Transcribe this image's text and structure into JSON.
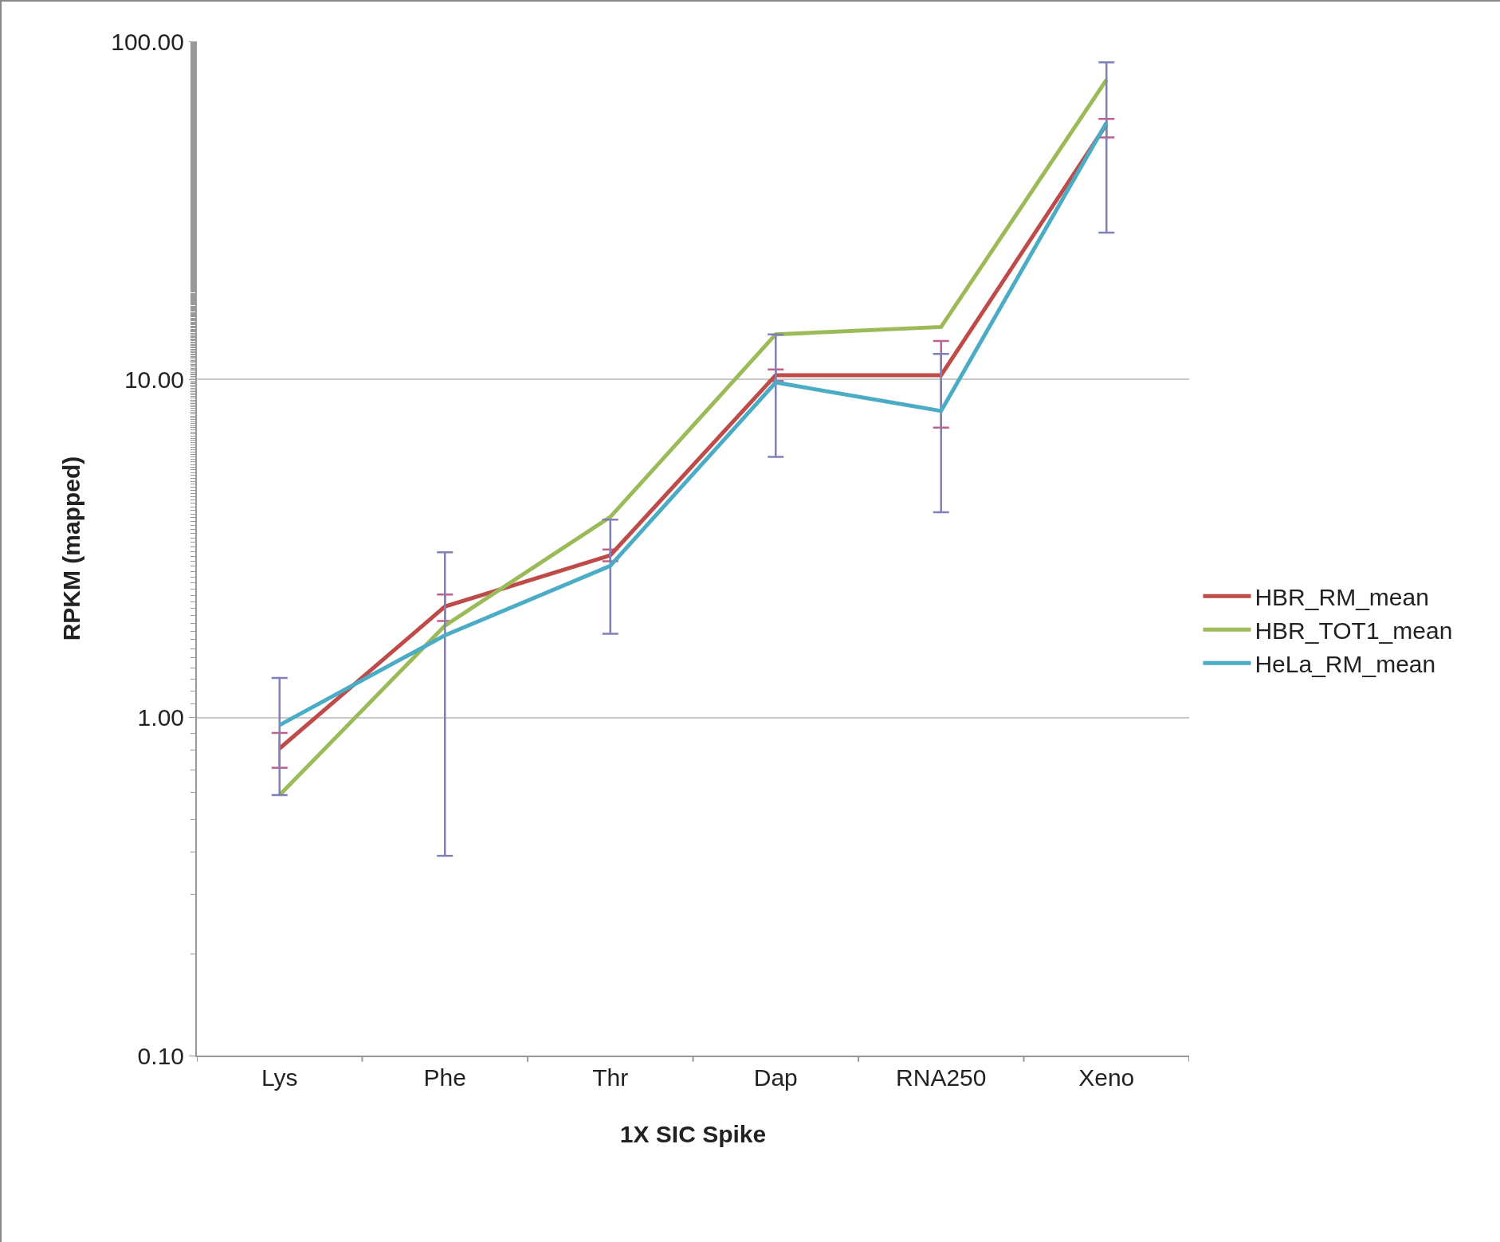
{
  "chart_data": {
    "type": "line",
    "xlabel": "1X SIC Spike",
    "ylabel": "RPKM (mapped)",
    "categories": [
      "Lys",
      "Phe",
      "Thr",
      "Dap",
      "RNA250",
      "Xeno"
    ],
    "series": [
      {
        "name": "HBR_RM_mean",
        "color": "#be4b48",
        "values": [
          0.81,
          2.13,
          3.02,
          10.3,
          10.3,
          56.8
        ],
        "errors": [
          [
            0.71,
            0.9
          ],
          [
            1.93,
            2.31
          ],
          [
            2.9,
            3.14
          ],
          [
            9.9,
            10.7
          ],
          [
            7.2,
            13.0
          ],
          [
            52,
            59
          ]
        ]
      },
      {
        "name": "HBR_TOT1_mean",
        "color": "#9bbb59",
        "values": [
          0.59,
          1.87,
          3.92,
          13.6,
          14.3,
          77
        ]
      },
      {
        "name": "HeLa_RM_mean",
        "color": "#4bacc6",
        "values": [
          0.95,
          1.75,
          2.81,
          9.8,
          8.07,
          57.5
        ],
        "errors": [
          [
            0.59,
            1.31
          ],
          [
            0.39,
            3.08
          ],
          [
            1.77,
            3.85
          ],
          [
            5.9,
            13.6
          ],
          [
            4.05,
            11.9
          ],
          [
            27.2,
            86.7
          ]
        ]
      }
    ],
    "log": "y",
    "ylim": [
      0.1,
      100
    ],
    "yticks": [
      {
        "value": 0.1,
        "label": "0.10"
      },
      {
        "value": 1,
        "label": "1.00"
      },
      {
        "value": 10,
        "label": "10.00"
      },
      {
        "value": 100,
        "label": "100.00"
      }
    ],
    "grid": "y",
    "legend": "right",
    "marker": "none",
    "line_style": "solid"
  }
}
